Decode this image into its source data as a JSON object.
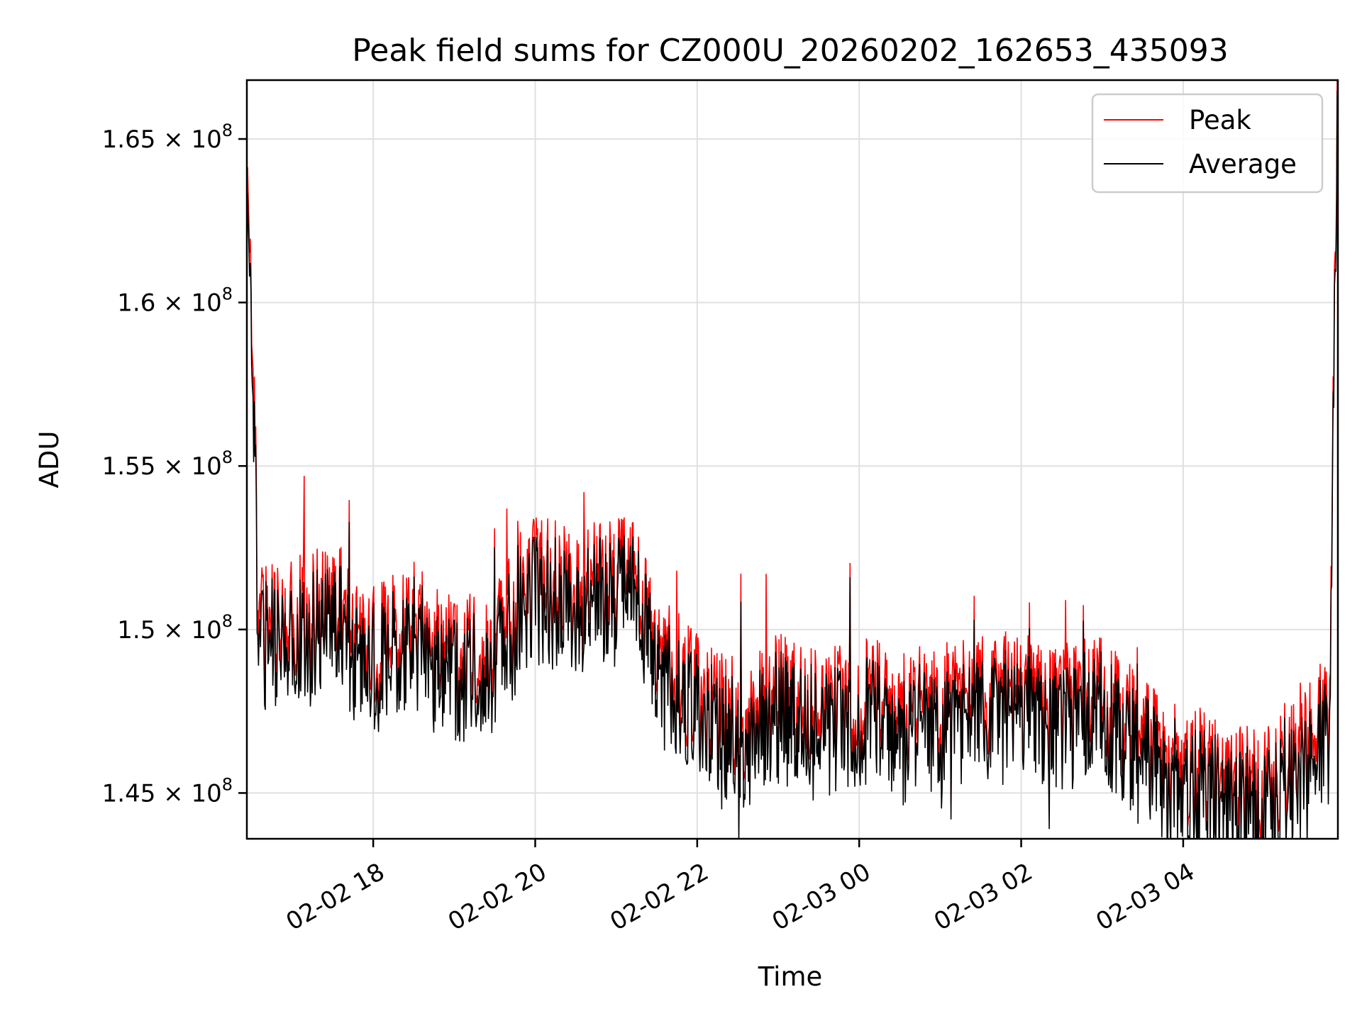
{
  "chart_data": {
    "type": "line",
    "title": "Peak field sums for CZ000U_20260202_162653_435093",
    "xlabel": "Time",
    "ylabel": "ADU",
    "x_range_hours": [
      16.44,
      29.91
    ],
    "ylim": [
      143600000,
      166800000
    ],
    "grid": true,
    "legend_position": "top-right",
    "x_ticks": [
      {
        "hour": 18,
        "label": "02-02 18"
      },
      {
        "hour": 20,
        "label": "02-02 20"
      },
      {
        "hour": 22,
        "label": "02-02 22"
      },
      {
        "hour": 24,
        "label": "02-03 00"
      },
      {
        "hour": 26,
        "label": "02-03 02"
      },
      {
        "hour": 28,
        "label": "02-03 04"
      }
    ],
    "y_ticks": [
      {
        "value": 145000000,
        "mantissa": "1.45"
      },
      {
        "value": 150000000,
        "mantissa": "1.5"
      },
      {
        "value": 155000000,
        "mantissa": "1.55"
      },
      {
        "value": 160000000,
        "mantissa": "1.6"
      },
      {
        "value": 165000000,
        "mantissa": "1.65"
      }
    ],
    "y_tick_suffix": "× 10",
    "y_tick_exponent": "8",
    "series": [
      {
        "name": "Peak",
        "color": "#ff0000",
        "baseline_hours": [
          16.44,
          16.6,
          17.0,
          17.5,
          18.0,
          18.5,
          19.0,
          19.5,
          20.0,
          20.5,
          21.0,
          21.2,
          21.5,
          22.0,
          22.5,
          23.0,
          23.5,
          24.0,
          24.5,
          25.0,
          25.5,
          26.0,
          26.5,
          27.0,
          27.5,
          28.0,
          28.5,
          29.0,
          29.5,
          29.8,
          29.91
        ],
        "baseline_values": [
          164000000,
          150000000,
          150200000,
          150700000,
          149400000,
          150300000,
          149100000,
          149500000,
          151500000,
          151200000,
          151500000,
          152200000,
          149300000,
          147900000,
          147100000,
          147900000,
          147400000,
          147900000,
          147400000,
          147600000,
          147900000,
          148000000,
          147700000,
          147800000,
          146600000,
          145700000,
          145300000,
          145000000,
          146600000,
          147400000,
          166500000
        ],
        "noise_amplitude": 2000000,
        "spikes": [
          {
            "hour": 17.15,
            "value": 154700000
          },
          {
            "hour": 19.65,
            "value": 153700000
          },
          {
            "hour": 20.6,
            "value": 154200000
          },
          {
            "hour": 21.75,
            "value": 151800000
          },
          {
            "hour": 22.85,
            "value": 151700000
          },
          {
            "hour": 26.55,
            "value": 150900000
          },
          {
            "hour": 29.9,
            "value": 166800000
          }
        ]
      },
      {
        "name": "Average",
        "color": "#000000",
        "offset_from_peak": -400000,
        "dips": [
          {
            "hour": 22.3,
            "value": 144500000
          },
          {
            "hour": 26.35,
            "value": 143900000
          },
          {
            "hour": 29.45,
            "value": 143600000
          }
        ]
      }
    ]
  }
}
